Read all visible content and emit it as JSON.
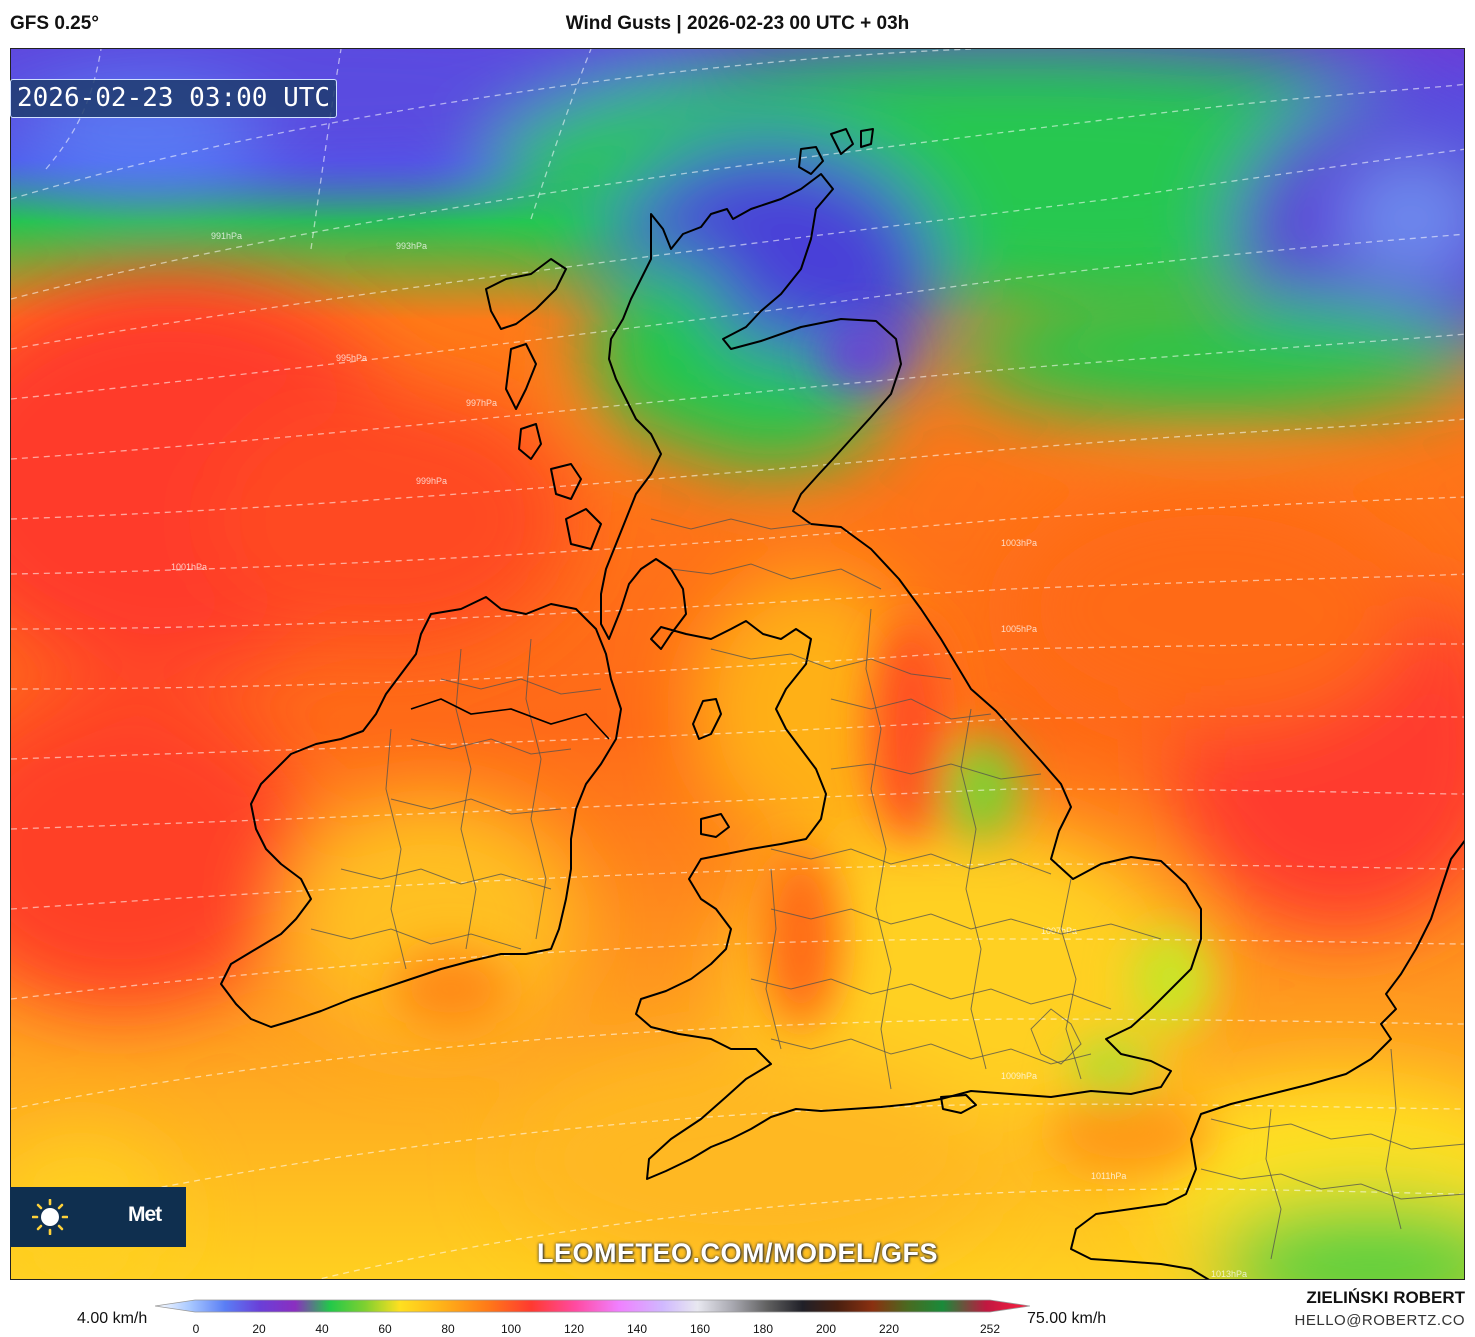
{
  "header": {
    "model": "GFS 0.25°",
    "title": "Wind Gusts | 2026-02-23 00 UTC + 03h"
  },
  "map": {
    "valid_time": "2026-02-23 03:00 UTC",
    "watermark": "LEOMETEO.COM/MODEL/GFS",
    "logo_text": "Met",
    "logo_icon": "sun-icon",
    "isobar_labels": [
      "991hPa",
      "993hPa",
      "995hPa",
      "997hPa",
      "999hPa",
      "1001hPa",
      "1003hPa",
      "1005hPa",
      "1007hPa",
      "1009hPa",
      "1011hPa",
      "1013hPa"
    ],
    "colors": {
      "calm": "#6a3fd8",
      "moderate": "#22c84a",
      "strong": "#ffe020",
      "very_strong": "#ff7a18",
      "severe": "#ff3a30"
    }
  },
  "legend": {
    "min_label": "4.00 km/h",
    "max_label": "75.00 km/h",
    "ticks": [
      "0",
      "20",
      "40",
      "60",
      "80",
      "100",
      "120",
      "140",
      "160",
      "180",
      "200",
      "220",
      "252"
    ]
  },
  "credits": {
    "author": "ZIELIŃSKI ROBERT",
    "email": "HELLO@ROBERTZ.CO"
  }
}
